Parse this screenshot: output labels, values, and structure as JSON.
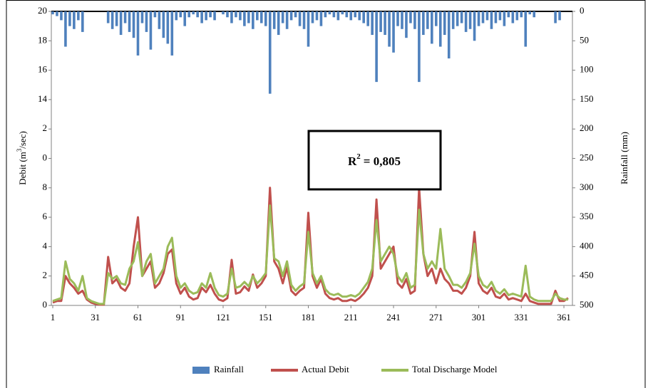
{
  "chart_data": {
    "type": "line",
    "ylabel": [
      "Debit (m",
      "3",
      "/sec)"
    ],
    "y2label": "Rainfall (mm)",
    "annotation": [
      "R",
      "2",
      "= 0,805"
    ],
    "xlim": [
      0,
      367
    ],
    "xticks": [
      1,
      31,
      61,
      91,
      121,
      151,
      181,
      211,
      241,
      271,
      301,
      331,
      361
    ],
    "ylim": [
      0,
      20
    ],
    "yticks": [
      0,
      2,
      4,
      6,
      8,
      {
        "value": 10,
        "label": "0"
      },
      {
        "value": 12,
        "label": "2"
      },
      14,
      16,
      18,
      20
    ],
    "y2lim": [
      500,
      0
    ],
    "y2ticks": [
      500,
      450,
      400,
      350,
      300,
      250,
      200,
      150,
      100,
      50,
      0
    ],
    "legend": "bottom",
    "x": [
      1,
      4,
      7,
      10,
      13,
      16,
      19,
      22,
      25,
      28,
      31,
      34,
      37,
      40,
      43,
      46,
      49,
      52,
      55,
      58,
      61,
      64,
      67,
      70,
      73,
      76,
      79,
      82,
      85,
      88,
      91,
      94,
      97,
      100,
      103,
      106,
      109,
      112,
      115,
      118,
      121,
      124,
      127,
      130,
      133,
      136,
      139,
      142,
      145,
      148,
      151,
      154,
      157,
      160,
      163,
      166,
      169,
      172,
      175,
      178,
      181,
      184,
      187,
      190,
      193,
      196,
      199,
      202,
      205,
      208,
      211,
      214,
      217,
      220,
      223,
      226,
      229,
      232,
      235,
      238,
      241,
      244,
      247,
      250,
      253,
      256,
      259,
      262,
      265,
      268,
      271,
      274,
      277,
      280,
      283,
      286,
      289,
      292,
      295,
      298,
      301,
      304,
      307,
      310,
      313,
      316,
      319,
      322,
      325,
      328,
      331,
      334,
      337,
      340,
      343,
      346,
      349,
      352,
      355,
      358,
      361,
      364
    ],
    "series": [
      {
        "name": "Rainfall",
        "type": "bar",
        "axis": "y2",
        "color": "#4f81bd",
        "values": [
          5,
          8,
          15,
          60,
          25,
          30,
          15,
          35,
          0,
          0,
          0,
          0,
          0,
          20,
          30,
          25,
          40,
          20,
          35,
          45,
          75,
          20,
          35,
          65,
          10,
          30,
          45,
          55,
          75,
          15,
          10,
          25,
          10,
          5,
          10,
          20,
          15,
          10,
          15,
          0,
          5,
          10,
          20,
          10,
          15,
          25,
          20,
          30,
          15,
          20,
          25,
          140,
          30,
          40,
          20,
          30,
          15,
          10,
          25,
          30,
          60,
          20,
          15,
          25,
          10,
          5,
          10,
          15,
          5,
          10,
          15,
          10,
          15,
          20,
          25,
          40,
          120,
          35,
          40,
          60,
          70,
          25,
          30,
          45,
          20,
          30,
          120,
          40,
          30,
          55,
          25,
          60,
          40,
          80,
          30,
          25,
          20,
          35,
          30,
          50,
          25,
          20,
          15,
          30,
          20,
          15,
          25,
          10,
          20,
          15,
          10,
          60,
          5,
          10,
          0,
          0,
          0,
          0,
          20,
          15,
          0,
          0
        ]
      },
      {
        "name": "Actual Debit",
        "type": "line",
        "color": "#c0504d",
        "values": [
          0.2,
          0.3,
          0.3,
          2.0,
          1.5,
          1.2,
          0.8,
          1.0,
          0.4,
          0.2,
          0.1,
          0.05,
          0.05,
          3.3,
          1.5,
          1.8,
          1.2,
          1.0,
          1.5,
          4.0,
          6.0,
          2.0,
          2.5,
          3.0,
          1.2,
          1.5,
          2.2,
          3.5,
          3.8,
          1.5,
          0.8,
          1.2,
          0.6,
          0.4,
          0.5,
          1.2,
          0.9,
          1.4,
          0.8,
          0.4,
          0.3,
          0.5,
          3.1,
          0.8,
          0.9,
          1.3,
          1.0,
          2.1,
          1.2,
          1.5,
          2.0,
          8.0,
          3.0,
          2.5,
          1.5,
          2.6,
          1.0,
          0.7,
          1.0,
          1.2,
          6.3,
          2.0,
          1.2,
          1.8,
          0.8,
          0.5,
          0.4,
          0.5,
          0.3,
          0.3,
          0.4,
          0.3,
          0.5,
          0.8,
          1.2,
          2.0,
          7.2,
          2.5,
          3.0,
          3.5,
          4.0,
          1.5,
          1.2,
          1.8,
          0.8,
          1.0,
          8.0,
          3.5,
          2.0,
          2.5,
          1.5,
          2.5,
          1.8,
          1.5,
          1.0,
          1.0,
          0.8,
          1.2,
          2.0,
          5.0,
          1.5,
          1.0,
          0.8,
          1.2,
          0.6,
          0.5,
          0.8,
          0.4,
          0.5,
          0.4,
          0.3,
          0.8,
          0.3,
          0.2,
          0.1,
          0.1,
          0.1,
          0.1,
          1.0,
          0.3,
          0.3,
          0.5
        ]
      },
      {
        "name": "Total Discharge Model",
        "type": "line",
        "color": "#9bbb59",
        "values": [
          0.3,
          0.4,
          0.5,
          3.0,
          1.8,
          1.5,
          1.0,
          2.0,
          0.5,
          0.3,
          0.2,
          0.1,
          0.1,
          2.2,
          1.8,
          2.0,
          1.5,
          1.4,
          2.5,
          3.0,
          4.3,
          2.0,
          3.0,
          3.5,
          1.5,
          2.0,
          2.5,
          4.0,
          4.6,
          2.0,
          1.2,
          1.5,
          1.0,
          0.8,
          0.9,
          1.5,
          1.2,
          2.2,
          1.2,
          0.7,
          0.6,
          0.8,
          2.5,
          1.2,
          1.3,
          1.6,
          1.3,
          2.0,
          1.5,
          1.8,
          2.2,
          6.8,
          3.2,
          3.0,
          2.0,
          3.0,
          1.4,
          1.0,
          1.3,
          1.5,
          5.0,
          2.2,
          1.5,
          2.0,
          1.1,
          0.8,
          0.7,
          0.8,
          0.6,
          0.6,
          0.7,
          0.6,
          0.8,
          1.2,
          1.6,
          2.5,
          5.8,
          3.0,
          3.5,
          4.0,
          3.5,
          2.0,
          1.6,
          2.2,
          1.2,
          1.4,
          6.5,
          3.5,
          2.5,
          3.0,
          2.5,
          5.2,
          2.5,
          2.0,
          1.4,
          1.4,
          1.2,
          1.6,
          2.2,
          4.2,
          2.0,
          1.4,
          1.2,
          1.6,
          1.0,
          0.8,
          1.1,
          0.7,
          0.8,
          0.7,
          0.6,
          2.7,
          0.6,
          0.4,
          0.3,
          0.3,
          0.3,
          0.3,
          0.8,
          0.5,
          0.4,
          0.4
        ]
      }
    ]
  }
}
